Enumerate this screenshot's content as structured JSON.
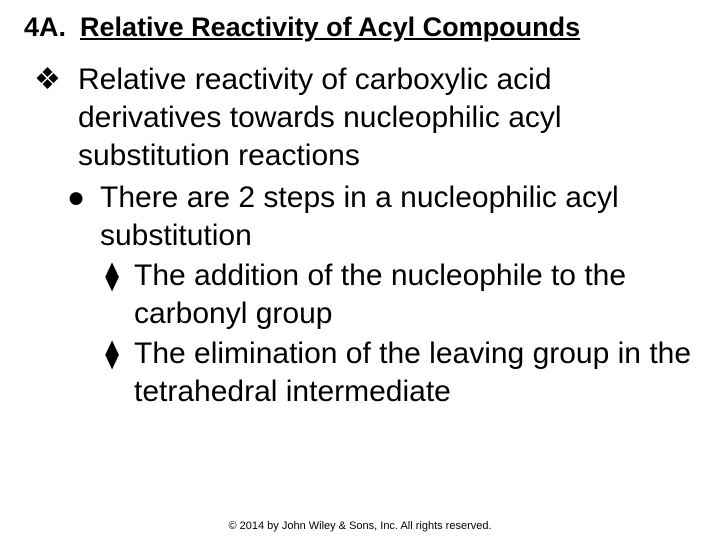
{
  "heading": {
    "number": "4A.",
    "title": "Relative Reactivity of Acyl Compounds"
  },
  "bullets": {
    "level1_marker": "❖",
    "level2_marker": "●",
    "level3_marker": "⧫"
  },
  "content": {
    "l1_text": "Relative reactivity of carboxylic acid derivatives towards nucleophilic acyl substitution reactions",
    "l2_text": "There are 2 steps in a nucleophilic acyl substitution",
    "l3a_text": "The addition of the nucleophile to the carbonyl group",
    "l3b_text": "The elimination of the leaving group in the tetrahedral intermediate"
  },
  "footer": "© 2014 by John Wiley & Sons, Inc. All rights reserved."
}
